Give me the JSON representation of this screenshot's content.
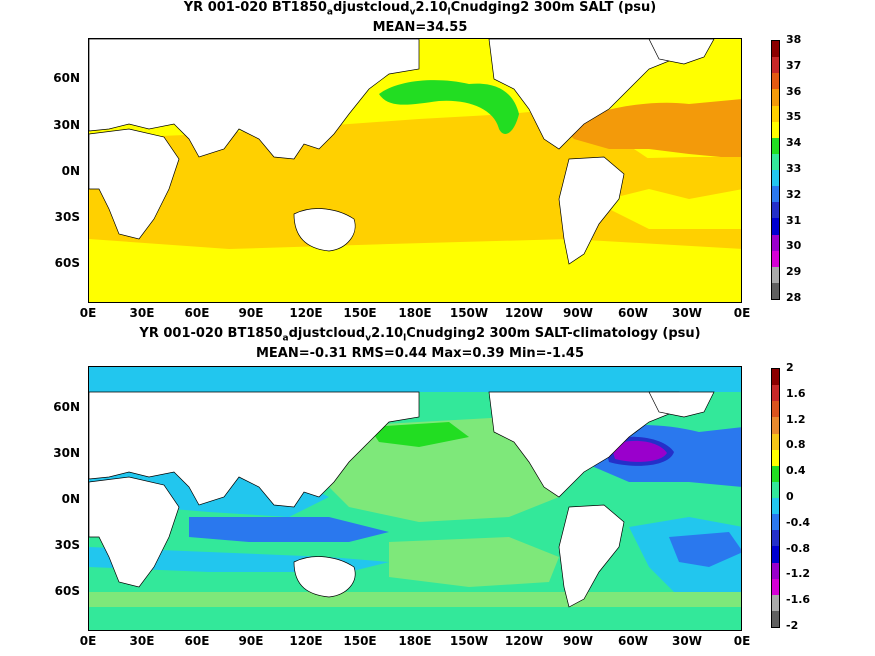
{
  "top": {
    "title_pre": "YR 001-020 BT1850",
    "title_sub1": "a",
    "title_mid": "djustcloud",
    "title_sub2": "v",
    "title_mid2": "2.10",
    "title_sub3": "l",
    "title_post": "Cnudging2 300m SALT (psu)",
    "stats": "MEAN=34.55",
    "colorbar_labels": [
      "38",
      "37",
      "36",
      "35",
      "34",
      "33",
      "32",
      "31",
      "30",
      "29",
      "28"
    ],
    "colorbar_colors": [
      "#8b0000",
      "#c62828",
      "#e25a12",
      "#f39a0a",
      "#ffd000",
      "#ffff00",
      "#22dd22",
      "#33e89a",
      "#22c6ee",
      "#2a78ee",
      "#2430c9",
      "#0000d0",
      "#9a00cc",
      "#d600d6",
      "#a9a9a9",
      "#606060"
    ]
  },
  "bottom": {
    "title_pre": "YR 001-020 BT1850",
    "title_sub1": "a",
    "title_mid": "djustcloud",
    "title_sub2": "v",
    "title_mid2": "2.10",
    "title_sub3": "l",
    "title_post": "Cnudging2 300m SALT-climatology (psu)",
    "stats": "MEAN=-0.31   RMS=0.44   Max=0.39   Min=-1.45",
    "colorbar_labels": [
      "2",
      "1.6",
      "1.2",
      "0.8",
      "0.4",
      "0",
      "-0.4",
      "-0.8",
      "-1.2",
      "-1.6",
      "-2"
    ],
    "colorbar_colors": [
      "#8b0000",
      "#c62828",
      "#d9531e",
      "#e88a2e",
      "#f5c518",
      "#ffff00",
      "#22dd22",
      "#33e89a",
      "#22c6ee",
      "#2a78ee",
      "#2430c9",
      "#0000d0",
      "#9a00cc",
      "#d600d6",
      "#a9a9a9",
      "#606060"
    ]
  },
  "axes": {
    "y_labels": [
      "60N",
      "30N",
      "0N",
      "30S",
      "60S"
    ],
    "x_labels": [
      "0E",
      "30E",
      "60E",
      "90E",
      "120E",
      "150E",
      "180E",
      "150W",
      "120W",
      "90W",
      "60W",
      "30W",
      "0E"
    ]
  }
}
